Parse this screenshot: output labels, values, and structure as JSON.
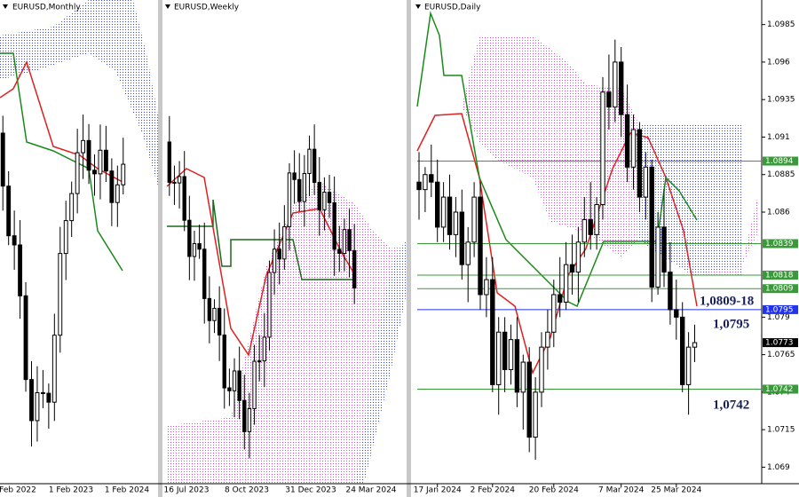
{
  "chart_data": [
    {
      "type": "candlestick",
      "title": "EURUSD,Monthly",
      "x_labels": [
        "Feb 2022",
        "1 Feb 2023",
        "1 Feb 2024"
      ]
    },
    {
      "type": "candlestick",
      "title": "EURUSD,Weekly",
      "x_labels": [
        "16 Jul 2023",
        "8 Oct 2023",
        "31 Dec 2023",
        "24 Mar 2024"
      ]
    },
    {
      "type": "candlestick",
      "title": "EURUSD,Daily",
      "categories": [
        null,
        null,
        null,
        "17 Jan 2024",
        null,
        null,
        null,
        null,
        null,
        null,
        null,
        null,
        "2 Feb 2024",
        null,
        null,
        null,
        null,
        null,
        null,
        null,
        null,
        null,
        "20 Feb 2024",
        null,
        null,
        null,
        null,
        null,
        null,
        null,
        null,
        null,
        null,
        "7 Mar 2024",
        null,
        null,
        null,
        null,
        null,
        null,
        null,
        null,
        "25 Mar 2024",
        null,
        null,
        null
      ],
      "candles": [
        [
          1.088,
          1.09,
          1.0855,
          1.0875
        ],
        [
          1.0875,
          1.089,
          1.086,
          1.0885
        ],
        [
          1.0885,
          1.0905,
          1.087,
          1.088
        ],
        [
          1.088,
          1.0895,
          1.084,
          1.085
        ],
        [
          1.085,
          1.088,
          1.084,
          1.087
        ],
        [
          1.087,
          1.0885,
          1.0835,
          1.0845
        ],
        [
          1.0845,
          1.087,
          1.083,
          1.086
        ],
        [
          1.086,
          1.0875,
          1.0815,
          1.0825
        ],
        [
          1.0825,
          1.085,
          1.08,
          1.084
        ],
        [
          1.084,
          1.088,
          1.083,
          1.087
        ],
        [
          1.087,
          1.088,
          1.0795,
          1.0805
        ],
        [
          1.0805,
          1.083,
          1.079,
          1.0815
        ],
        [
          1.0815,
          1.083,
          1.074,
          1.0745
        ],
        [
          1.0745,
          1.079,
          1.0725,
          1.078
        ],
        [
          1.078,
          1.079,
          1.074,
          1.0755
        ],
        [
          1.0755,
          1.0785,
          1.0745,
          1.0775
        ],
        [
          1.0775,
          1.079,
          1.073,
          1.074
        ],
        [
          1.074,
          1.0765,
          1.0715,
          1.076
        ],
        [
          1.076,
          1.077,
          1.07,
          1.071
        ],
        [
          1.071,
          1.075,
          1.0695,
          1.074
        ],
        [
          1.074,
          1.078,
          1.073,
          1.077
        ],
        [
          1.077,
          1.0795,
          1.0755,
          1.078
        ],
        [
          1.078,
          1.0815,
          1.077,
          1.0805
        ],
        [
          1.0805,
          1.083,
          1.079,
          1.08
        ],
        [
          1.08,
          1.084,
          1.0795,
          1.0825
        ],
        [
          1.0825,
          1.0845,
          1.0805,
          1.082
        ],
        [
          1.082,
          1.085,
          1.08,
          1.084
        ],
        [
          1.084,
          1.087,
          1.083,
          1.0855
        ],
        [
          1.0855,
          1.088,
          1.0835,
          1.0845
        ],
        [
          1.0845,
          1.087,
          1.0835,
          1.0865
        ],
        [
          1.0865,
          1.095,
          1.0855,
          1.094
        ],
        [
          1.094,
          1.0965,
          1.0915,
          1.093
        ],
        [
          1.093,
          1.0975,
          1.092,
          1.096
        ],
        [
          1.096,
          1.097,
          1.091,
          1.0925
        ],
        [
          1.0925,
          1.0945,
          1.088,
          1.089
        ],
        [
          1.089,
          1.0925,
          1.0875,
          1.0915
        ],
        [
          1.0915,
          1.092,
          1.086,
          1.087
        ],
        [
          1.087,
          1.09,
          1.0855,
          1.089
        ],
        [
          1.089,
          1.0895,
          1.08,
          1.081
        ],
        [
          1.081,
          1.086,
          1.0805,
          1.085
        ],
        [
          1.085,
          1.0875,
          1.081,
          1.082
        ],
        [
          1.082,
          1.084,
          1.0785,
          1.0795
        ],
        [
          1.0795,
          1.0815,
          1.0775,
          1.079
        ],
        [
          1.079,
          1.08,
          1.074,
          1.0745
        ],
        [
          1.0745,
          1.078,
          1.0725,
          1.077
        ],
        [
          1.077,
          1.0785,
          1.076,
          1.0773
        ]
      ],
      "up_color": "#ffffff",
      "down_color": "#000000",
      "ylim": [
        1.0679,
        1.0999
      ],
      "yticks": [
        1.0985,
        1.096,
        1.0935,
        1.091,
        1.0885,
        1.086,
        1.079,
        1.0765,
        1.074,
        1.0715,
        1.069
      ],
      "levels": [
        {
          "value": 1.0894,
          "color": "#3a9a3a"
        },
        {
          "value": 1.0839,
          "color": "#3a9a3a"
        },
        {
          "value": 1.0818,
          "color": "#3a9a3a"
        },
        {
          "value": 1.0809,
          "color": "#3a9a3a"
        },
        {
          "value": 1.0795,
          "color": "#2233ee"
        },
        {
          "value": 1.0742,
          "color": "#3a9a3a"
        }
      ],
      "last_price": 1.0773,
      "annotations": [
        "1,0809-18",
        "1,0795",
        "1,0742"
      ]
    }
  ]
}
